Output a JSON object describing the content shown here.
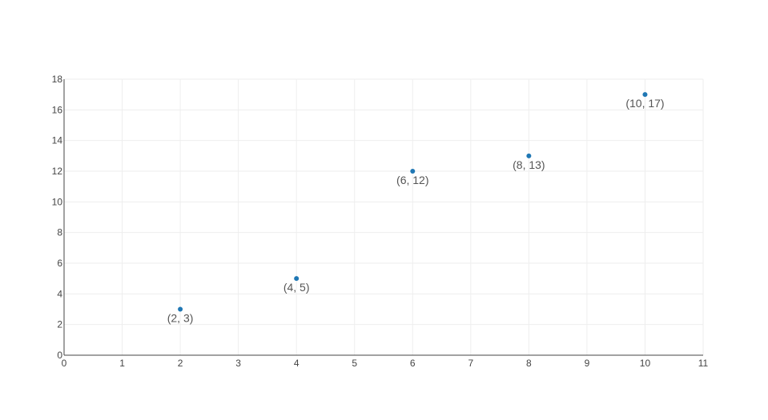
{
  "chart_data": {
    "type": "scatter",
    "title": "",
    "xlabel": "",
    "ylabel": "",
    "xlim": [
      0,
      11
    ],
    "ylim": [
      0,
      18
    ],
    "x_ticks": [
      0,
      1,
      2,
      3,
      4,
      5,
      6,
      7,
      8,
      9,
      10,
      11
    ],
    "y_ticks": [
      0,
      2,
      4,
      6,
      8,
      10,
      12,
      14,
      16,
      18
    ],
    "grid": true,
    "legend": "none",
    "series": [
      {
        "color": "#1f77b4",
        "x": [
          2,
          4,
          6,
          8,
          10
        ],
        "y": [
          3,
          5,
          12,
          13,
          17
        ],
        "labels": [
          "(2, 3)",
          "(4, 5)",
          "(6, 12)",
          "(8, 13)",
          "(10, 17)"
        ]
      }
    ]
  }
}
